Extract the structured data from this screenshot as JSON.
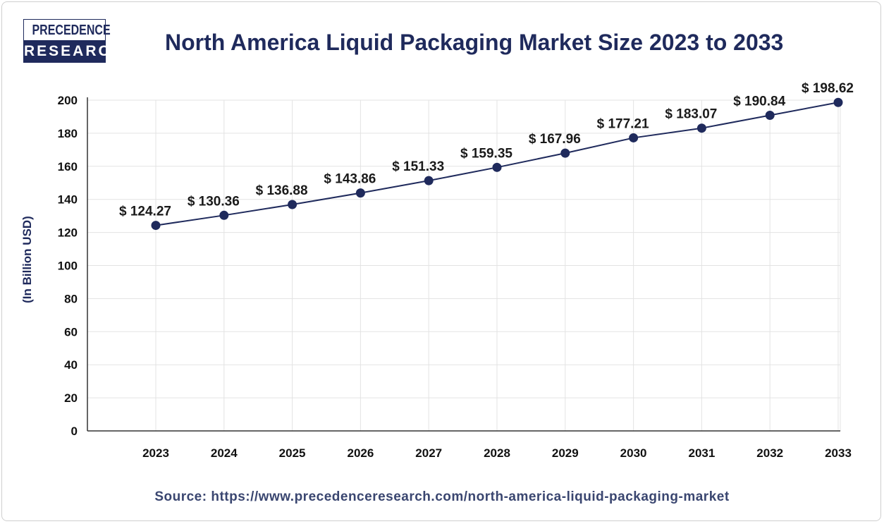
{
  "logo": {
    "line1": "PRECEDENCE",
    "line2": "RESEARCH"
  },
  "colors": {
    "navy": "#1f2a5c",
    "grid": "#e3e3e3"
  },
  "source": "Source: https://www.precedenceresearch.com/north-america-liquid-packaging-market",
  "chart_data": {
    "type": "line",
    "title": "North America Liquid Packaging Market Size 2023 to 2033",
    "xlabel": "",
    "ylabel": "(In Billion USD)",
    "ylim": [
      0,
      200
    ],
    "yticks": [
      0,
      20,
      40,
      60,
      80,
      100,
      120,
      140,
      160,
      180,
      200
    ],
    "grid": true,
    "categories": [
      "2023",
      "2024",
      "2025",
      "2026",
      "2027",
      "2028",
      "2029",
      "2030",
      "2031",
      "2032",
      "2033"
    ],
    "values": [
      124.27,
      130.36,
      136.88,
      143.86,
      151.33,
      159.35,
      167.96,
      177.21,
      183.07,
      190.84,
      198.62
    ],
    "data_labels": [
      "$ 124.27",
      "$ 130.36",
      "$ 136.88",
      "$ 143.86",
      "$ 151.33",
      "$ 159.35",
      "$ 167.96",
      "$ 177.21",
      "$ 183.07",
      "$ 190.84",
      "$ 198.62"
    ]
  }
}
